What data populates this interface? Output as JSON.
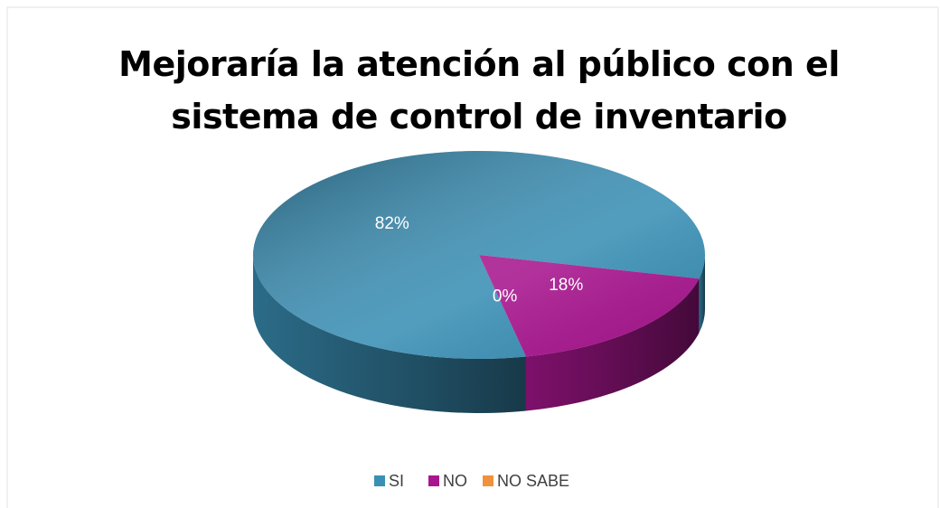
{
  "chart_data": {
    "type": "pie",
    "title": "Mejoraría la atención al público con el sistema de control de inventario",
    "categories": [
      "SI",
      "NO",
      "NO SABE"
    ],
    "values": [
      82,
      18,
      0
    ],
    "value_labels": [
      "82%",
      "18%",
      "0%"
    ],
    "colors": [
      "#3a8fb5",
      "#a8168f",
      "#f0923c"
    ],
    "legend": "bottom"
  }
}
